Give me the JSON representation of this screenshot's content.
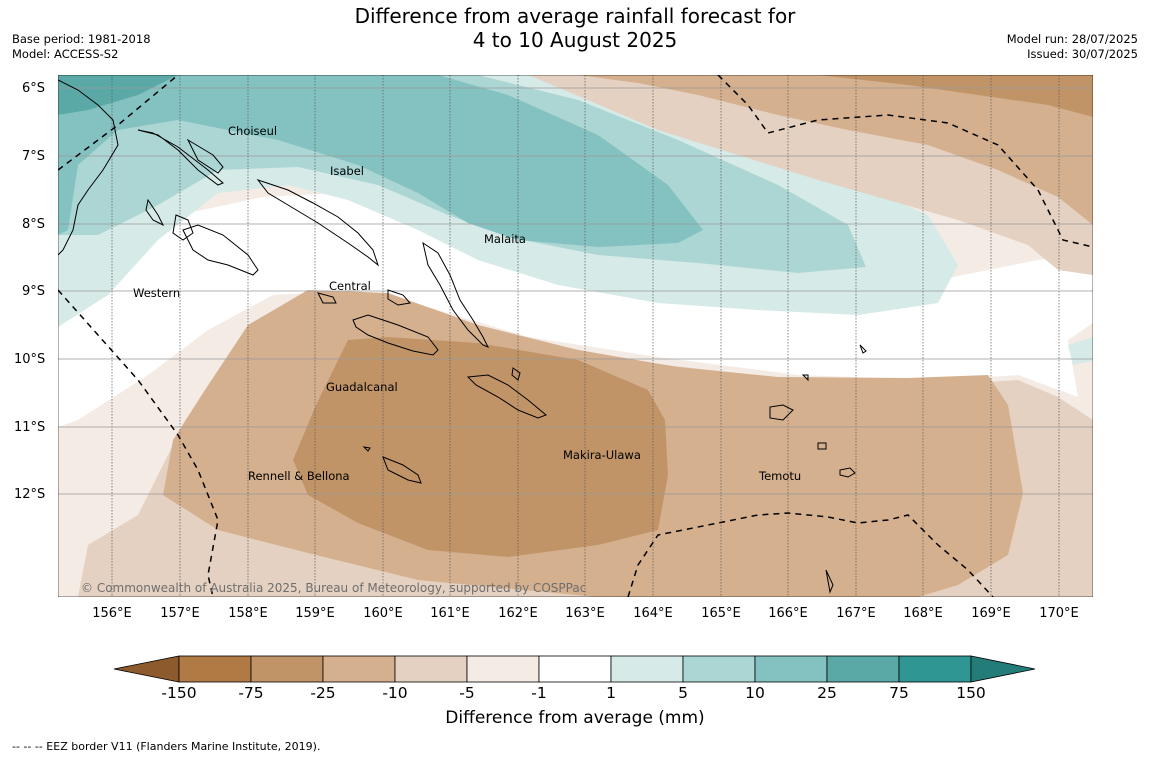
{
  "title_line1": "Difference from average rainfall forecast for",
  "title_line2": "4 to 10 August 2025",
  "meta_left": {
    "base_period": "Base period: 1981-2018",
    "model": "Model: ACCESS-S2"
  },
  "meta_right": {
    "model_run": "Model run: 28/07/2025",
    "issued": "Issued: 30/07/2025"
  },
  "lat_labels": [
    "6°S",
    "7°S",
    "8°S",
    "9°S",
    "10°S",
    "11°S",
    "12°S"
  ],
  "lon_labels": [
    "156°E",
    "157°E",
    "158°E",
    "159°E",
    "160°E",
    "161°E",
    "162°E",
    "163°E",
    "164°E",
    "165°E",
    "166°E",
    "167°E",
    "168°E",
    "169°E",
    "170°E"
  ],
  "provinces": [
    "Choiseul",
    "Isabel",
    "Malaita",
    "Central",
    "Western",
    "Guadalcanal",
    "Makira-Ulawa",
    "Rennell & Bellona",
    "Temotu"
  ],
  "copyright": "© Commonwealth of Australia 2025, Bureau of Meteorology, supported by COSPPac",
  "colorbar": {
    "ticks": [
      "-150",
      "-75",
      "-25",
      "-10",
      "-5",
      "-1",
      "1",
      "5",
      "10",
      "25",
      "75",
      "150"
    ],
    "colors": [
      "#8c5a2c",
      "#b07a45",
      "#c19468",
      "#d4b08f",
      "#e4d1c1",
      "#f4ebe5",
      "#ffffff",
      "#d6eae8",
      "#acd6d4",
      "#84c2c1",
      "#5ba9a7",
      "#2f9693",
      "#247c79"
    ],
    "title": "Difference from average (mm)"
  },
  "eez_note": "--  --  -- EEZ border V11 (Flanders Marine Institute, 2019)."
}
